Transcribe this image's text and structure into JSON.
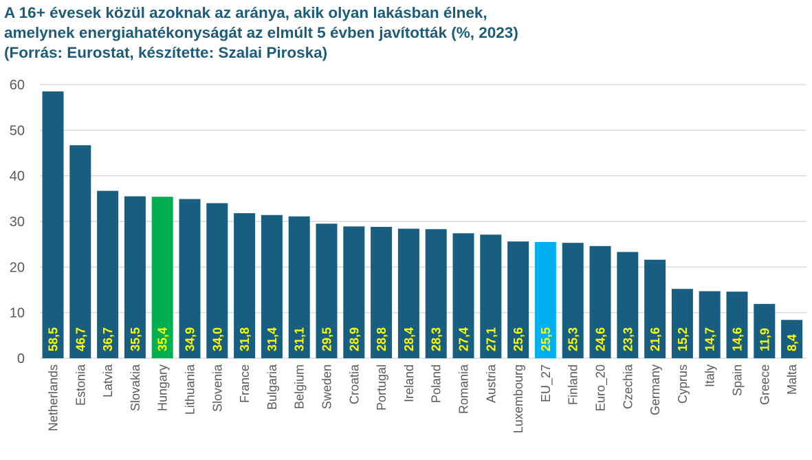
{
  "chart_data": {
    "type": "bar",
    "title_lines": [
      "A 16+ évesek közül azoknak az aránya, akik olyan lakásban élnek,",
      "amelynek energiahatékonyságát az elmúlt 5 évben javították (%, 2023)",
      "(Forrás: Eurostat, készítette: Szalai Piroska)"
    ],
    "xlabel": "",
    "ylabel": "",
    "ylim": [
      0,
      60
    ],
    "yticks": [
      0,
      10,
      20,
      30,
      40,
      50,
      60
    ],
    "grid": true,
    "categories": [
      "Netherlands",
      "Estonia",
      "Latvia",
      "Slovakia",
      "Hungary",
      "Lithuania",
      "Slovenia",
      "France",
      "Bulgaria",
      "Belgium",
      "Sweden",
      "Croatia",
      "Portugal",
      "Ireland",
      "Poland",
      "Romania",
      "Austria",
      "Luxembourg",
      "EU_27",
      "Finland",
      "Euro_20",
      "Czechia",
      "Germany",
      "Cyprus",
      "Italy",
      "Spain",
      "Greece",
      "Malta"
    ],
    "values": [
      58.5,
      46.7,
      36.7,
      35.5,
      35.4,
      34.9,
      34.0,
      31.8,
      31.4,
      31.1,
      29.5,
      28.9,
      28.8,
      28.4,
      28.3,
      27.4,
      27.1,
      25.6,
      25.5,
      25.3,
      24.6,
      23.3,
      21.6,
      15.2,
      14.7,
      14.6,
      11.9,
      8.4
    ],
    "data_labels": [
      "58,5",
      "46,7",
      "36,7",
      "35,5",
      "35,4",
      "34,9",
      "34,0",
      "31,8",
      "31,4",
      "31,1",
      "29,5",
      "28,9",
      "28,8",
      "28,4",
      "28,3",
      "27,4",
      "27,1",
      "25,6",
      "25,5",
      "25,3",
      "24,6",
      "23,3",
      "21,6",
      "15,2",
      "14,7",
      "14,6",
      "11,9",
      "8,4"
    ],
    "colors": {
      "default": "#175e80",
      "Hungary": "#00b050",
      "EU_27": "#00b0f0",
      "label": "#ffff00",
      "grid": "#d9d9d9",
      "axis_text": "#595959"
    }
  }
}
